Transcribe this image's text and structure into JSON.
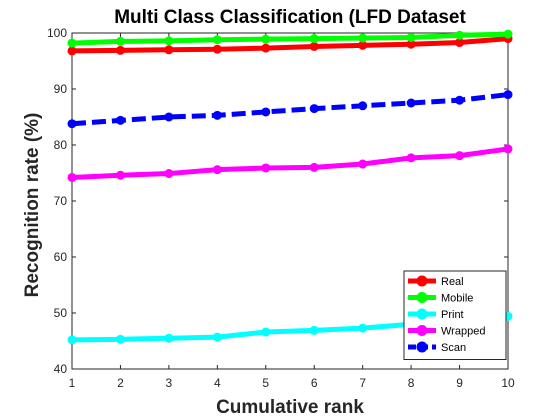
{
  "chart_data": {
    "type": "line",
    "title": "Multi Class Classification (LFD Dataset",
    "xlabel": "Cumulative rank",
    "ylabel": "Recognition rate (%)",
    "x": [
      1,
      2,
      3,
      4,
      5,
      6,
      7,
      8,
      9,
      10
    ],
    "xlim": [
      1,
      10
    ],
    "ylim": [
      40,
      100
    ],
    "xticks": [
      "1",
      "2",
      "3",
      "4",
      "5",
      "6",
      "7",
      "8",
      "9",
      "10"
    ],
    "yticks": [
      "40",
      "50",
      "60",
      "70",
      "80",
      "90",
      "100"
    ],
    "grid": false,
    "legend_position": "bottom-right",
    "series": [
      {
        "name": "Real",
        "color": "#ff0000",
        "dashed": false,
        "marker": "circle",
        "values": [
          96.8,
          96.9,
          97.0,
          97.1,
          97.3,
          97.6,
          97.8,
          98.0,
          98.3,
          99.0
        ]
      },
      {
        "name": "Mobile",
        "color": "#00ff00",
        "dashed": false,
        "marker": "circle",
        "values": [
          98.2,
          98.5,
          98.6,
          98.8,
          98.9,
          99.0,
          99.1,
          99.2,
          99.6,
          99.8
        ]
      },
      {
        "name": "Print",
        "color": "#00ffff",
        "dashed": false,
        "marker": "circle",
        "values": [
          45.2,
          45.3,
          45.5,
          45.7,
          46.6,
          46.9,
          47.3,
          48.0,
          48.6,
          49.4
        ]
      },
      {
        "name": "Wrapped",
        "color": "#ff00ff",
        "dashed": false,
        "marker": "circle",
        "values": [
          74.2,
          74.6,
          74.9,
          75.6,
          75.9,
          76.0,
          76.6,
          77.7,
          78.1,
          79.3
        ]
      },
      {
        "name": "Scan",
        "color": "#0000ff",
        "dashed": true,
        "marker": "circle",
        "values": [
          83.8,
          84.4,
          85.0,
          85.3,
          85.9,
          86.5,
          87.0,
          87.5,
          88.0,
          89.0
        ]
      }
    ]
  }
}
